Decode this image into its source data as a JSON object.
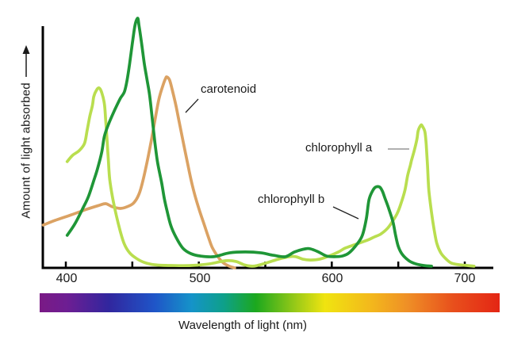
{
  "figure": {
    "background": "#ffffff",
    "axis_color": "#000000"
  },
  "annotations": [
    {
      "label": "carotenoid",
      "line": [
        250,
        125,
        234,
        142
      ],
      "line_color": "#222222"
    },
    {
      "label": "chlorophyll a",
      "line": [
        489,
        188,
        516,
        188
      ],
      "line_color": "#808080"
    },
    {
      "label": "chlorophyll b",
      "line": [
        420,
        261,
        452,
        276
      ],
      "line_color": "#222222"
    }
  ],
  "chart_data": {
    "type": "line",
    "title": "",
    "xlabel": "Wavelength of light (nm)",
    "ylabel": "Amount of light absorbed",
    "xlim": [
      380,
      726
    ],
    "ylim": [
      0,
      1.1
    ],
    "grid": false,
    "legend": "annotated labels with pointer lines, no legend box",
    "x_ticks": [
      {
        "value": 400,
        "label": "400"
      },
      {
        "value": 500,
        "label": "500"
      },
      {
        "value": 600,
        "label": "600"
      },
      {
        "value": 700,
        "label": "700"
      }
    ],
    "x_minor_ticks": [
      450,
      550,
      650
    ],
    "series": [
      {
        "name": "carotenoid",
        "color": "#dba263",
        "points": [
          [
            383,
            0.18
          ],
          [
            392,
            0.2
          ],
          [
            404,
            0.223
          ],
          [
            416,
            0.247
          ],
          [
            425,
            0.263
          ],
          [
            430,
            0.27
          ],
          [
            435,
            0.257
          ],
          [
            441,
            0.25
          ],
          [
            446,
            0.257
          ],
          [
            451,
            0.273
          ],
          [
            455,
            0.31
          ],
          [
            458,
            0.367
          ],
          [
            461,
            0.443
          ],
          [
            464,
            0.527
          ],
          [
            467,
            0.62
          ],
          [
            470,
            0.71
          ],
          [
            473,
            0.767
          ],
          [
            475,
            0.797
          ],
          [
            476,
            0.803
          ],
          [
            478,
            0.79
          ],
          [
            480,
            0.75
          ],
          [
            483,
            0.677
          ],
          [
            486,
            0.593
          ],
          [
            489,
            0.51
          ],
          [
            492,
            0.427
          ],
          [
            495,
            0.35
          ],
          [
            498,
            0.287
          ],
          [
            501,
            0.233
          ],
          [
            504,
            0.183
          ],
          [
            507,
            0.133
          ],
          [
            510,
            0.087
          ],
          [
            514,
            0.05
          ],
          [
            518,
            0.023
          ],
          [
            523,
            0.007
          ],
          [
            527,
            0.0
          ]
        ]
      },
      {
        "name": "chlorophyll a",
        "color": "#b9de4f",
        "points": [
          [
            401,
            0.447
          ],
          [
            405,
            0.473
          ],
          [
            410,
            0.493
          ],
          [
            414,
            0.523
          ],
          [
            416,
            0.577
          ],
          [
            418,
            0.637
          ],
          [
            420,
            0.683
          ],
          [
            421,
            0.72
          ],
          [
            423,
            0.747
          ],
          [
            425,
            0.757
          ],
          [
            427,
            0.737
          ],
          [
            429,
            0.69
          ],
          [
            430,
            0.62
          ],
          [
            431,
            0.537
          ],
          [
            432,
            0.45
          ],
          [
            433,
            0.373
          ],
          [
            435,
            0.3
          ],
          [
            438,
            0.22
          ],
          [
            441,
            0.153
          ],
          [
            444,
            0.1
          ],
          [
            448,
            0.063
          ],
          [
            453,
            0.04
          ],
          [
            459,
            0.023
          ],
          [
            467,
            0.013
          ],
          [
            479,
            0.01
          ],
          [
            494,
            0.01
          ],
          [
            508,
            0.017
          ],
          [
            520,
            0.03
          ],
          [
            528,
            0.027
          ],
          [
            534,
            0.013
          ],
          [
            540,
            0.007
          ],
          [
            544,
            0.01
          ],
          [
            552,
            0.023
          ],
          [
            560,
            0.037
          ],
          [
            568,
            0.047
          ],
          [
            573,
            0.047
          ],
          [
            578,
            0.037
          ],
          [
            584,
            0.033
          ],
          [
            591,
            0.037
          ],
          [
            598,
            0.05
          ],
          [
            605,
            0.067
          ],
          [
            610,
            0.083
          ],
          [
            617,
            0.097
          ],
          [
            622,
            0.107
          ],
          [
            627,
            0.117
          ],
          [
            632,
            0.13
          ],
          [
            637,
            0.143
          ],
          [
            642,
            0.167
          ],
          [
            645,
            0.19
          ],
          [
            649,
            0.227
          ],
          [
            652,
            0.27
          ],
          [
            655,
            0.327
          ],
          [
            657,
            0.387
          ],
          [
            659,
            0.43
          ],
          [
            660,
            0.453
          ],
          [
            662,
            0.493
          ],
          [
            664,
            0.54
          ],
          [
            665,
            0.577
          ],
          [
            667,
            0.6
          ],
          [
            668,
            0.597
          ],
          [
            670,
            0.573
          ],
          [
            671,
            0.52
          ],
          [
            672,
            0.427
          ],
          [
            673,
            0.327
          ],
          [
            675,
            0.233
          ],
          [
            677,
            0.16
          ],
          [
            679,
            0.103
          ],
          [
            682,
            0.063
          ],
          [
            686,
            0.037
          ],
          [
            690,
            0.02
          ],
          [
            696,
            0.013
          ],
          [
            702,
            0.01
          ],
          [
            707,
            0.007
          ]
        ]
      },
      {
        "name": "chlorophyll b",
        "color": "#1f9637",
        "points": [
          [
            401,
            0.137
          ],
          [
            407,
            0.187
          ],
          [
            413,
            0.253
          ],
          [
            417,
            0.3
          ],
          [
            421,
            0.367
          ],
          [
            424,
            0.42
          ],
          [
            427,
            0.487
          ],
          [
            429,
            0.553
          ],
          [
            432,
            0.603
          ],
          [
            437,
            0.667
          ],
          [
            441,
            0.713
          ],
          [
            444,
            0.74
          ],
          [
            446,
            0.787
          ],
          [
            448,
            0.86
          ],
          [
            450,
            0.943
          ],
          [
            452,
            1.02
          ],
          [
            454,
            1.05
          ],
          [
            455,
            1.02
          ],
          [
            457,
            0.943
          ],
          [
            459,
            0.86
          ],
          [
            461,
            0.793
          ],
          [
            463,
            0.727
          ],
          [
            465,
            0.627
          ],
          [
            467,
            0.527
          ],
          [
            469,
            0.443
          ],
          [
            472,
            0.36
          ],
          [
            474,
            0.293
          ],
          [
            476,
            0.243
          ],
          [
            479,
            0.177
          ],
          [
            483,
            0.127
          ],
          [
            488,
            0.083
          ],
          [
            494,
            0.06
          ],
          [
            501,
            0.05
          ],
          [
            511,
            0.047
          ],
          [
            523,
            0.063
          ],
          [
            535,
            0.067
          ],
          [
            547,
            0.063
          ],
          [
            556,
            0.053
          ],
          [
            565,
            0.047
          ],
          [
            572,
            0.067
          ],
          [
            580,
            0.08
          ],
          [
            584,
            0.08
          ],
          [
            590,
            0.067
          ],
          [
            596,
            0.05
          ],
          [
            602,
            0.047
          ],
          [
            608,
            0.05
          ],
          [
            613,
            0.063
          ],
          [
            619,
            0.1
          ],
          [
            623,
            0.137
          ],
          [
            626,
            0.207
          ],
          [
            628,
            0.287
          ],
          [
            631,
            0.327
          ],
          [
            633,
            0.34
          ],
          [
            636,
            0.34
          ],
          [
            638,
            0.323
          ],
          [
            640,
            0.293
          ],
          [
            643,
            0.247
          ],
          [
            646,
            0.193
          ],
          [
            648,
            0.137
          ],
          [
            650,
            0.09
          ],
          [
            653,
            0.057
          ],
          [
            658,
            0.03
          ],
          [
            663,
            0.017
          ],
          [
            669,
            0.01
          ],
          [
            675,
            0.007
          ]
        ]
      }
    ],
    "spectrum_bar": {
      "stops": [
        [
          "0%",
          "#7a1a85"
        ],
        [
          "6%",
          "#6d1e93"
        ],
        [
          "15%",
          "#31269e"
        ],
        [
          "25%",
          "#1f55c8"
        ],
        [
          "33%",
          "#1593c9"
        ],
        [
          "40%",
          "#0ea08a"
        ],
        [
          "47%",
          "#1ca81e"
        ],
        [
          "56%",
          "#9ecb17"
        ],
        [
          "62%",
          "#f0e410"
        ],
        [
          "72%",
          "#f3b81c"
        ],
        [
          "80%",
          "#ef8f26"
        ],
        [
          "90%",
          "#e84f1c"
        ],
        [
          "100%",
          "#e42614"
        ]
      ]
    }
  }
}
